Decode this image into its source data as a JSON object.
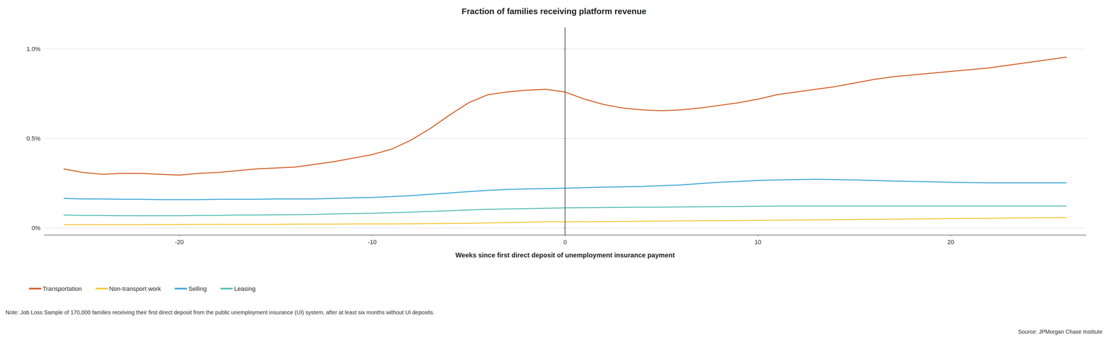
{
  "chart_data": {
    "type": "line",
    "title": "Fraction of families receiving platform revenue",
    "xlabel": "Weeks since first direct deposit of unemployment insurance payment",
    "annotations": [
      "Note: Job Loss Sample of 170,000 families receiving their first direct deposit from the public unemployment insurance (UI) system, after at least six months without UI deposits.",
      "Source: JPMorgan Chase Institute"
    ],
    "vline_x": 0,
    "xlim": [
      -27,
      27
    ],
    "xticks": [
      -20,
      -10,
      0,
      10,
      20
    ],
    "ylim": [
      -0.0004,
      0.0112
    ],
    "yticks": [
      {
        "value": 0.0,
        "label": "0%"
      },
      {
        "value": 0.005,
        "label": "0.5%"
      },
      {
        "value": 0.01,
        "label": "1.0%"
      }
    ],
    "grid": "y",
    "legend": "bottom",
    "x": [
      -26,
      -25,
      -24,
      -23,
      -22,
      -21,
      -20,
      -19,
      -18,
      -17,
      -16,
      -15,
      -14,
      -13,
      -12,
      -11,
      -10,
      -9,
      -8,
      -7,
      -6,
      -5,
      -4,
      -3,
      -2,
      -1,
      0,
      1,
      2,
      3,
      4,
      5,
      6,
      7,
      8,
      9,
      10,
      11,
      12,
      13,
      14,
      15,
      16,
      17,
      18,
      19,
      20,
      21,
      22,
      23,
      24,
      25,
      26
    ],
    "series": [
      {
        "name": "Transportation",
        "color": "#D4622A",
        "values": [
          0.0033,
          0.0031,
          0.003,
          0.00305,
          0.00305,
          0.003,
          0.00295,
          0.00305,
          0.0031,
          0.0032,
          0.0033,
          0.00335,
          0.0034,
          0.00355,
          0.0037,
          0.0039,
          0.0041,
          0.0044,
          0.0049,
          0.00555,
          0.0063,
          0.007,
          0.00745,
          0.0076,
          0.0077,
          0.00775,
          0.0076,
          0.0072,
          0.0069,
          0.0067,
          0.0066,
          0.00655,
          0.0066,
          0.0067,
          0.00685,
          0.007,
          0.0072,
          0.00745,
          0.0076,
          0.00775,
          0.0079,
          0.0081,
          0.0083,
          0.00845,
          0.00855,
          0.00865,
          0.00875,
          0.00885,
          0.00895,
          0.0091,
          0.00925,
          0.0094,
          0.00955
        ]
      },
      {
        "name": "Non-transport work",
        "color": "#F5C842",
        "values": [
          0.00018,
          0.00018,
          0.00018,
          0.00018,
          0.00018,
          0.00019,
          0.00019,
          0.0002,
          0.0002,
          0.0002,
          0.0002,
          0.0002,
          0.00021,
          0.00021,
          0.00021,
          0.00022,
          0.00022,
          0.00022,
          0.00023,
          0.00024,
          0.00025,
          0.00026,
          0.00028,
          0.0003,
          0.00032,
          0.00034,
          0.00034,
          0.00034,
          0.00035,
          0.00036,
          0.00037,
          0.00038,
          0.00039,
          0.0004,
          0.0004,
          0.00041,
          0.00042,
          0.00043,
          0.00044,
          0.00045,
          0.00046,
          0.00047,
          0.00048,
          0.00049,
          0.0005,
          0.00051,
          0.00052,
          0.00053,
          0.00054,
          0.00055,
          0.00056,
          0.00057,
          0.00058
        ]
      },
      {
        "name": "Selling",
        "color": "#3EA8D8",
        "values": [
          0.00165,
          0.00162,
          0.00162,
          0.0016,
          0.0016,
          0.00158,
          0.00158,
          0.00158,
          0.0016,
          0.0016,
          0.0016,
          0.00162,
          0.00162,
          0.00162,
          0.00165,
          0.00168,
          0.0017,
          0.00175,
          0.0018,
          0.00188,
          0.00195,
          0.00203,
          0.0021,
          0.00215,
          0.00218,
          0.0022,
          0.00222,
          0.00225,
          0.00228,
          0.0023,
          0.00232,
          0.00236,
          0.0024,
          0.00248,
          0.00255,
          0.0026,
          0.00265,
          0.00268,
          0.0027,
          0.00272,
          0.0027,
          0.00268,
          0.00265,
          0.00262,
          0.0026,
          0.00258,
          0.00255,
          0.00253,
          0.00252,
          0.00252,
          0.00252,
          0.00252,
          0.00252
        ]
      },
      {
        "name": "Leasing",
        "color": "#5BBFB5",
        "values": [
          0.00072,
          0.0007,
          0.0007,
          0.00068,
          0.00068,
          0.00068,
          0.00068,
          0.0007,
          0.0007,
          0.00072,
          0.00072,
          0.00073,
          0.00074,
          0.00075,
          0.00078,
          0.0008,
          0.00082,
          0.00085,
          0.00088,
          0.00092,
          0.00096,
          0.001,
          0.00104,
          0.00106,
          0.00108,
          0.0011,
          0.00112,
          0.00113,
          0.00114,
          0.00115,
          0.00116,
          0.00116,
          0.00117,
          0.00118,
          0.00119,
          0.0012,
          0.00121,
          0.00122,
          0.00122,
          0.00122,
          0.00122,
          0.00122,
          0.00122,
          0.00122,
          0.00122,
          0.00122,
          0.00122,
          0.00122,
          0.00122,
          0.00122,
          0.00122,
          0.00122,
          0.00122
        ]
      }
    ]
  }
}
